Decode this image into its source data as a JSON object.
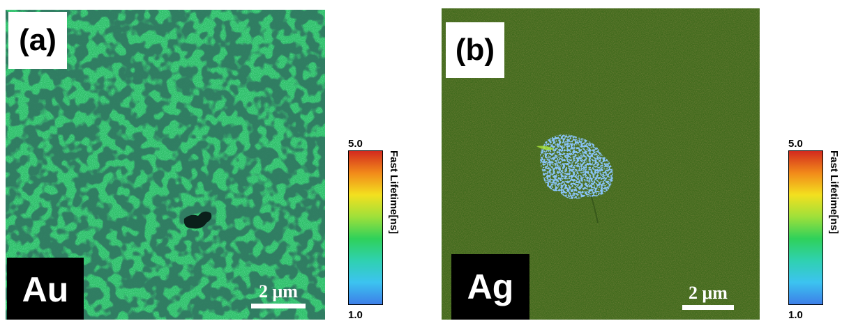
{
  "panels": [
    {
      "label": "(a)",
      "metal": "Au",
      "scale_bar": "2 μm",
      "background_color": "#2fbf69"
    },
    {
      "label": "(b)",
      "metal": "Ag",
      "scale_bar": "2 μm",
      "background_color": "#3f6a1c"
    }
  ],
  "colorbar": {
    "title": "Fast Lifetime[ns]",
    "max": "5.0",
    "min": "1.0",
    "colors": [
      "#d32a1e",
      "#f28a1a",
      "#f3e01f",
      "#9fe03a",
      "#2fd15a",
      "#2fd1b0",
      "#3cc3f0",
      "#3d7fe8"
    ]
  }
}
